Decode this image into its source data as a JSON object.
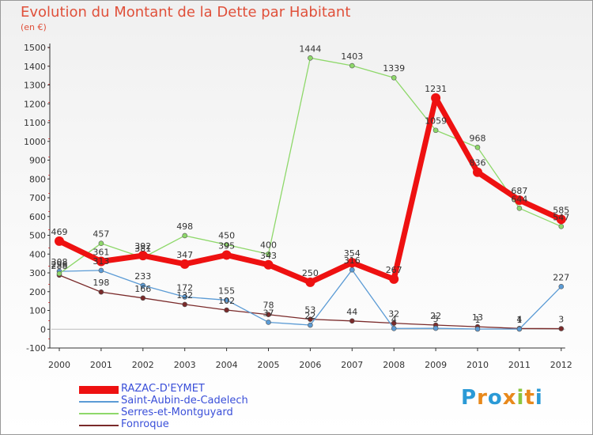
{
  "title": "Evolution du Montant de la Dette par Habitant",
  "subtitle": "(en €)",
  "logo": {
    "text": "Proxiti",
    "colors": [
      "#2b9ad6",
      "#e8891c",
      "#2b9ad6",
      "#e8891c",
      "#8cc63f",
      "#e8891c",
      "#2b9ad6"
    ]
  },
  "chart_data": {
    "type": "line",
    "x": [
      "2000",
      "2001",
      "2002",
      "2003",
      "2004",
      "2005",
      "2006",
      "2007",
      "2008",
      "2009",
      "2010",
      "2011",
      "2012"
    ],
    "yticks": [
      "-100",
      "0",
      "100",
      "200",
      "300",
      "400",
      "500",
      "600",
      "700",
      "800",
      "900",
      "1000",
      "1100",
      "1200",
      "1300",
      "1400",
      "1500"
    ],
    "ylim": [
      -100,
      1500
    ],
    "grid": false,
    "legend_position": "bottom-left",
    "series": [
      {
        "name": "RAZAC-D'EYMET",
        "color": "#ee1111",
        "values": [
          469,
          361,
          392,
          347,
          395,
          343,
          250,
          354,
          267,
          1231,
          836,
          687,
          585
        ]
      },
      {
        "name": "Saint-Aubin-de-Cadelech",
        "color": "#5b9bd5",
        "values": [
          308,
          313,
          233,
          172,
          155,
          37,
          22,
          316,
          4,
          5,
          1,
          1,
          227
        ]
      },
      {
        "name": "Serres-et-Montguyard",
        "color": "#8ed86a",
        "values": [
          296,
          457,
          381,
          498,
          450,
          400,
          1444,
          1403,
          1339,
          1059,
          968,
          644,
          547
        ]
      },
      {
        "name": "Fonroque",
        "color": "#7a2a2a",
        "values": [
          288,
          198,
          166,
          132,
          102,
          78,
          53,
          44,
          32,
          22,
          13,
          4,
          3
        ]
      }
    ],
    "data_labels": [
      {
        "x": "2000",
        "text": "469",
        "value": 469,
        "series": 0
      },
      {
        "x": "2001",
        "text": "361",
        "value": 361,
        "series": 0
      },
      {
        "x": "2002",
        "text": "392",
        "value": 392,
        "series": 0
      },
      {
        "x": "2003",
        "text": "347",
        "value": 347,
        "series": 0
      },
      {
        "x": "2004",
        "text": "395",
        "value": 395,
        "series": 0
      },
      {
        "x": "2005",
        "text": "343",
        "value": 343,
        "series": 0
      },
      {
        "x": "2006",
        "text": "250",
        "value": 250,
        "series": 0
      },
      {
        "x": "2007",
        "text": "354",
        "value": 354,
        "series": 0
      },
      {
        "x": "2008",
        "text": "267",
        "value": 267,
        "series": 0
      },
      {
        "x": "2009",
        "text": "1231",
        "value": 1231,
        "series": 0
      },
      {
        "x": "2010",
        "text": "836",
        "value": 836,
        "series": 0
      },
      {
        "x": "2011",
        "text": "687",
        "value": 687,
        "series": 0
      },
      {
        "x": "2012",
        "text": "585",
        "value": 585,
        "series": 0
      },
      {
        "x": "2000",
        "text": "308",
        "value": 308,
        "series": 1
      },
      {
        "x": "2001",
        "text": "313",
        "value": 313,
        "series": 1
      },
      {
        "x": "2002",
        "text": "233",
        "value": 233,
        "series": 1
      },
      {
        "x": "2003",
        "text": "172",
        "value": 172,
        "series": 1
      },
      {
        "x": "2004",
        "text": "155",
        "value": 155,
        "series": 1
      },
      {
        "x": "2005",
        "text": "37",
        "value": 37,
        "series": 1
      },
      {
        "x": "2006",
        "text": "22",
        "value": 22,
        "series": 1
      },
      {
        "x": "2007",
        "text": "316",
        "value": 316,
        "series": 1
      },
      {
        "x": "2008",
        "text": "4",
        "value": 4,
        "series": 1
      },
      {
        "x": "2009",
        "text": "5",
        "value": 5,
        "series": 1
      },
      {
        "x": "2010",
        "text": "1",
        "value": 1,
        "series": 1
      },
      {
        "x": "2011",
        "text": "1",
        "value": 1,
        "series": 1
      },
      {
        "x": "2012",
        "text": "227",
        "value": 227,
        "series": 1
      },
      {
        "x": "2000",
        "text": "296",
        "value": 296,
        "series": 2
      },
      {
        "x": "2001",
        "text": "457",
        "value": 457,
        "series": 2
      },
      {
        "x": "2002",
        "text": "381",
        "value": 381,
        "series": 2
      },
      {
        "x": "2003",
        "text": "498",
        "value": 498,
        "series": 2
      },
      {
        "x": "2004",
        "text": "450",
        "value": 450,
        "series": 2
      },
      {
        "x": "2005",
        "text": "400",
        "value": 400,
        "series": 2
      },
      {
        "x": "2006",
        "text": "1444",
        "value": 1444,
        "series": 2
      },
      {
        "x": "2007",
        "text": "1403",
        "value": 1403,
        "series": 2
      },
      {
        "x": "2008",
        "text": "1339",
        "value": 1339,
        "series": 2
      },
      {
        "x": "2009",
        "text": "1059",
        "value": 1059,
        "series": 2
      },
      {
        "x": "2010",
        "text": "968",
        "value": 968,
        "series": 2
      },
      {
        "x": "2011",
        "text": "644",
        "value": 644,
        "series": 2
      },
      {
        "x": "2012",
        "text": "547",
        "value": 547,
        "series": 2
      },
      {
        "x": "2000",
        "text": "288",
        "value": 288,
        "series": 3
      },
      {
        "x": "2001",
        "text": "198",
        "value": 198,
        "series": 3
      },
      {
        "x": "2002",
        "text": "166",
        "value": 166,
        "series": 3
      },
      {
        "x": "2003",
        "text": "132",
        "value": 132,
        "series": 3
      },
      {
        "x": "2004",
        "text": "102",
        "value": 102,
        "series": 3
      },
      {
        "x": "2005",
        "text": "78",
        "value": 78,
        "series": 3
      },
      {
        "x": "2006",
        "text": "53",
        "value": 53,
        "series": 3
      },
      {
        "x": "2007",
        "text": "44",
        "value": 44,
        "series": 3
      },
      {
        "x": "2008",
        "text": "32",
        "value": 32,
        "series": 3
      },
      {
        "x": "2009",
        "text": "22",
        "value": 22,
        "series": 3
      },
      {
        "x": "2010",
        "text": "13",
        "value": 13,
        "series": 3
      },
      {
        "x": "2011",
        "text": "4",
        "value": 4,
        "series": 3
      },
      {
        "x": "2012",
        "text": "3",
        "value": 3,
        "series": 3
      }
    ]
  }
}
